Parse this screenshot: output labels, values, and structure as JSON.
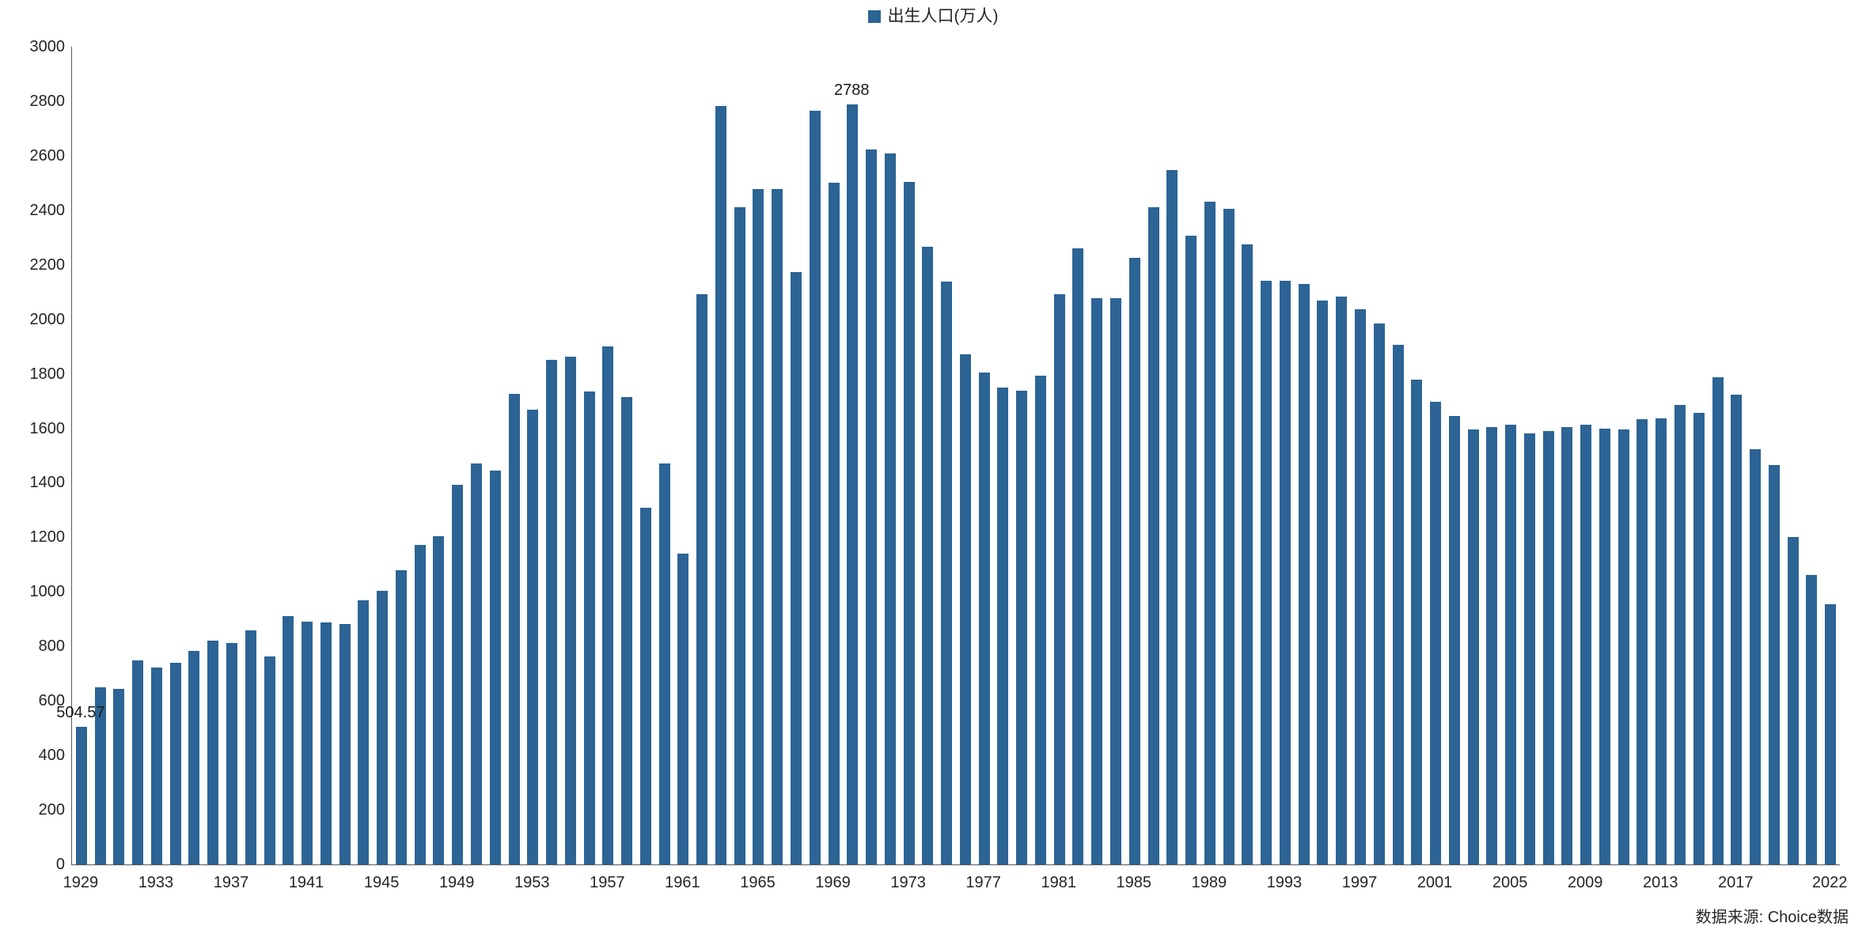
{
  "legend": {
    "label": "出生人口(万人)"
  },
  "source": {
    "text": "数据来源: Choice数据"
  },
  "colors": {
    "bar": "#2c6495",
    "axis": "#595959",
    "text": "#262626"
  },
  "chart_data": {
    "type": "bar",
    "title": "",
    "series_name": "出生人口(万人)",
    "categories": [
      1929,
      1930,
      1931,
      1932,
      1933,
      1934,
      1935,
      1936,
      1937,
      1938,
      1939,
      1940,
      1941,
      1942,
      1943,
      1944,
      1945,
      1946,
      1947,
      1948,
      1949,
      1950,
      1951,
      1952,
      1953,
      1954,
      1955,
      1956,
      1957,
      1958,
      1959,
      1960,
      1961,
      1962,
      1963,
      1964,
      1965,
      1966,
      1967,
      1968,
      1969,
      1970,
      1971,
      1972,
      1973,
      1974,
      1975,
      1976,
      1977,
      1978,
      1979,
      1980,
      1981,
      1982,
      1983,
      1984,
      1985,
      1986,
      1987,
      1988,
      1989,
      1990,
      1991,
      1992,
      1993,
      1994,
      1995,
      1996,
      1997,
      1998,
      1999,
      2000,
      2001,
      2002,
      2003,
      2004,
      2005,
      2006,
      2007,
      2008,
      2009,
      2010,
      2011,
      2012,
      2013,
      2014,
      2015,
      2016,
      2017,
      2018,
      2019,
      2020,
      2021,
      2022
    ],
    "values": [
      504.57,
      650,
      645,
      748,
      722,
      740,
      782,
      820,
      812,
      860,
      762,
      912,
      892,
      888,
      882,
      968,
      1005,
      1080,
      1172,
      1205,
      1392,
      1470,
      1445,
      1725,
      1668,
      1850,
      1862,
      1735,
      1900,
      1715,
      1308,
      1470,
      1140,
      2092,
      2782,
      2410,
      2478,
      2478,
      2172,
      2766,
      2502,
      2788,
      2622,
      2608,
      2504,
      2266,
      2138,
      1872,
      1806,
      1750,
      1738,
      1794,
      2092,
      2260,
      2076,
      2076,
      2226,
      2410,
      2546,
      2306,
      2432,
      2406,
      2276,
      2140,
      2142,
      2130,
      2068,
      2082,
      2036,
      1986,
      1906,
      1778,
      1696,
      1645,
      1595,
      1605,
      1612,
      1582,
      1590,
      1604,
      1612,
      1598,
      1596,
      1633,
      1637,
      1685,
      1658,
      1786,
      1723,
      1523,
      1465,
      1200,
      1062,
      956
    ],
    "ylim": [
      0,
      3000
    ],
    "yticks": [
      0,
      200,
      400,
      600,
      800,
      1000,
      1200,
      1400,
      1600,
      1800,
      2000,
      2200,
      2400,
      2600,
      2800,
      3000
    ],
    "xticks": [
      1929,
      1933,
      1937,
      1941,
      1945,
      1949,
      1953,
      1957,
      1961,
      1965,
      1969,
      1973,
      1977,
      1981,
      1985,
      1989,
      1993,
      1997,
      2001,
      2005,
      2009,
      2013,
      2017,
      2022
    ],
    "grid": false,
    "legend_position": "top-center",
    "annotations": [
      {
        "year": 1929,
        "text": "504.57"
      },
      {
        "year": 1970,
        "text": "2788"
      }
    ]
  }
}
